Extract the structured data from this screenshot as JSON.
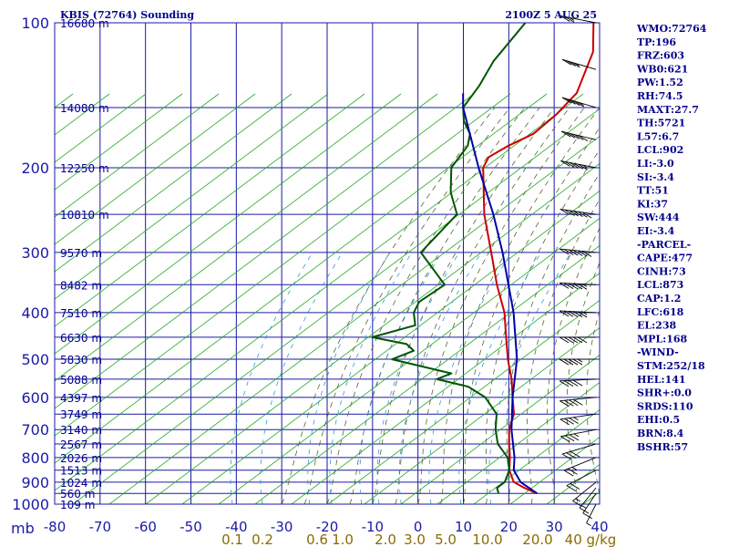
{
  "header": {
    "station": "KBIS (72764) Sounding",
    "time": "2100Z  5 AUG 25"
  },
  "stats": [
    "WMO:72764",
    "TP:196",
    "FRZ:603",
    "WB0:621",
    "PW:1.52",
    "RH:74.5",
    "MAXT:27.7",
    "TH:5721",
    "L57:6.7",
    "LCL:902",
    "LI:-3.0",
    "SI:-3.4",
    "TT:51",
    "KI:37",
    "SW:444",
    "EI:-3.4",
    "-PARCEL-",
    "CAPE:477",
    "CINH:73",
    "LCL:873",
    "CAP:1.2",
    "LFC:618",
    "EL:238",
    "MPL:168",
    "-WIND-",
    "STM:252/18",
    "HEL:141",
    "SHR+:0.0",
    "SRDS:110",
    "EHI:0.5",
    "BRN:8.4",
    "BSHR:57"
  ],
  "colors": {
    "grid": "#1a1aa6",
    "dry_adiabat": "#22aa22",
    "moist_adiabat": "#556633",
    "mixing_ratio": "#3399dd",
    "temperature": "#cc0000",
    "dewpoint": "#005500",
    "parcel": "#0000aa",
    "wind_barb": "#000000"
  },
  "chart_data": {
    "type": "skew-t log-p sounding",
    "title": "KBIS (72764) Sounding",
    "xlabel": "",
    "ylabel": "mb",
    "y_scale": "log",
    "pressure_ticks": [
      100,
      200,
      300,
      400,
      500,
      600,
      700,
      800,
      900,
      1000
    ],
    "temperature_ticks": [
      -80,
      -70,
      -60,
      -50,
      -40,
      -30,
      -20,
      -10,
      0,
      10,
      20,
      30,
      40
    ],
    "height_labels": [
      {
        "p": 100,
        "label": "16680 m"
      },
      {
        "p": 150,
        "label": "14080 m"
      },
      {
        "p": 200,
        "label": "12250 m"
      },
      {
        "p": 250,
        "label": "10810 m"
      },
      {
        "p": 300,
        "label": "9570 m"
      },
      {
        "p": 350,
        "label": "8482 m"
      },
      {
        "p": 400,
        "label": "7510 m"
      },
      {
        "p": 450,
        "label": "6630 m"
      },
      {
        "p": 500,
        "label": "5830 m"
      },
      {
        "p": 550,
        "label": "5088 m"
      },
      {
        "p": 600,
        "label": "4397 m"
      },
      {
        "p": 650,
        "label": "3749 m"
      },
      {
        "p": 700,
        "label": "3140 m"
      },
      {
        "p": 750,
        "label": "2567 m"
      },
      {
        "p": 800,
        "label": "2026 m"
      },
      {
        "p": 850,
        "label": "1513 m"
      },
      {
        "p": 900,
        "label": "1024 m"
      },
      {
        "p": 950,
        "label": "560 m"
      },
      {
        "p": 1000,
        "label": "109 m"
      }
    ],
    "mixing_ratio_labels": [
      "0.1",
      "0.2",
      "0.6",
      "1.0",
      "2.0",
      "3.0",
      "5.0",
      "10.0",
      "20.0",
      "40 g/kg"
    ],
    "mixing_ratio_values": [
      0.1,
      0.2,
      0.6,
      1.0,
      2.0,
      3.0,
      5.0,
      10.0,
      20.0,
      40.0
    ],
    "series": [
      {
        "name": "Temperature",
        "points": [
          [
            950,
            24
          ],
          [
            925,
            20
          ],
          [
            900,
            16.5
          ],
          [
            850,
            13
          ],
          [
            800,
            10.5
          ],
          [
            750,
            7.5
          ],
          [
            700,
            4.5
          ],
          [
            650,
            2.3
          ],
          [
            600,
            -1.5
          ],
          [
            550,
            -5.5
          ],
          [
            500,
            -10.5
          ],
          [
            450,
            -15.5
          ],
          [
            400,
            -21
          ],
          [
            350,
            -28.5
          ],
          [
            300,
            -36.5
          ],
          [
            250,
            -46
          ],
          [
            200,
            -56
          ],
          [
            190,
            -57
          ],
          [
            180,
            -55
          ],
          [
            170,
            -52
          ],
          [
            155,
            -51
          ],
          [
            140,
            -51
          ],
          [
            115,
            -56
          ],
          [
            100,
            -62
          ]
        ]
      },
      {
        "name": "Dewpoint",
        "points": [
          [
            950,
            15.5
          ],
          [
            925,
            14
          ],
          [
            900,
            14.5
          ],
          [
            850,
            13
          ],
          [
            800,
            10
          ],
          [
            750,
            5
          ],
          [
            700,
            1.5
          ],
          [
            650,
            -1.5
          ],
          [
            600,
            -7.5
          ],
          [
            570,
            -13.5
          ],
          [
            550,
            -22
          ],
          [
            535,
            -20
          ],
          [
            500,
            -36
          ],
          [
            480,
            -33
          ],
          [
            465,
            -36
          ],
          [
            450,
            -45
          ],
          [
            425,
            -38
          ],
          [
            400,
            -41
          ],
          [
            380,
            -42
          ],
          [
            350,
            -40
          ],
          [
            300,
            -52
          ],
          [
            250,
            -52
          ],
          [
            225,
            -58
          ],
          [
            200,
            -63
          ],
          [
            180,
            -64
          ],
          [
            170,
            -66
          ],
          [
            160,
            -70
          ],
          [
            150,
            -73
          ],
          [
            135,
            -74
          ],
          [
            120,
            -76
          ],
          [
            100,
            -77
          ]
        ]
      },
      {
        "name": "Parcel",
        "points": [
          [
            950,
            24
          ],
          [
            900,
            18
          ],
          [
            850,
            14
          ],
          [
            800,
            11.5
          ],
          [
            700,
            5
          ],
          [
            600,
            -1.5
          ],
          [
            500,
            -8.5
          ],
          [
            400,
            -19
          ],
          [
            300,
            -34
          ],
          [
            250,
            -44
          ],
          [
            200,
            -57
          ],
          [
            150,
            -73
          ],
          [
            140,
            -76
          ]
        ]
      }
    ],
    "wind_profile": [
      {
        "p": 1000,
        "dir": 160,
        "spd": 5
      },
      {
        "p": 950,
        "dir": 170,
        "spd": 10
      },
      {
        "p": 925,
        "dir": 180,
        "spd": 15
      },
      {
        "p": 900,
        "dir": 200,
        "spd": 15
      },
      {
        "p": 850,
        "dir": 220,
        "spd": 20
      },
      {
        "p": 800,
        "dir": 230,
        "spd": 25
      },
      {
        "p": 750,
        "dir": 240,
        "spd": 30
      },
      {
        "p": 700,
        "dir": 250,
        "spd": 35
      },
      {
        "p": 650,
        "dir": 255,
        "spd": 35
      },
      {
        "p": 600,
        "dir": 260,
        "spd": 40
      },
      {
        "p": 550,
        "dir": 265,
        "spd": 40
      },
      {
        "p": 500,
        "dir": 270,
        "spd": 45
      },
      {
        "p": 450,
        "dir": 270,
        "spd": 50
      },
      {
        "p": 400,
        "dir": 275,
        "spd": 55
      },
      {
        "p": 350,
        "dir": 275,
        "spd": 55
      },
      {
        "p": 300,
        "dir": 280,
        "spd": 60
      },
      {
        "p": 250,
        "dir": 285,
        "spd": 60
      },
      {
        "p": 200,
        "dir": 290,
        "spd": 55
      },
      {
        "p": 175,
        "dir": 295,
        "spd": 50
      },
      {
        "p": 150,
        "dir": 300,
        "spd": 45
      },
      {
        "p": 125,
        "dir": 300,
        "spd": 35
      },
      {
        "p": 100,
        "dir": 290,
        "spd": 25
      }
    ]
  }
}
